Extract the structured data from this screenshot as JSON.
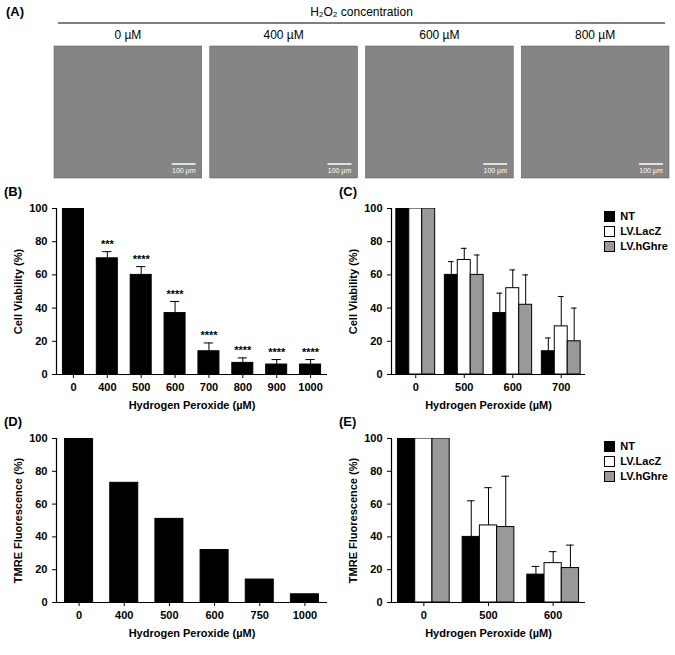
{
  "figure": {
    "panel": "(A)",
    "title": "H₂O₂ concentration",
    "images": [
      {
        "label": "0 µM",
        "scale_bar": "100 µm"
      },
      {
        "label": "400 µM",
        "scale_bar": "100 µm"
      },
      {
        "label": "600 µM",
        "scale_bar": "100 µm"
      },
      {
        "label": "800 µM",
        "scale_bar": "100 µm"
      }
    ]
  },
  "chart_data": [
    {
      "panel": "(B)",
      "type": "bar",
      "x_label": "Hydrogen Peroxide (µM)",
      "y_label": "Cell Viability (%)",
      "categories": [
        "0",
        "400",
        "500",
        "600",
        "700",
        "800",
        "900",
        "1000"
      ],
      "values": [
        100,
        70,
        60,
        37,
        14,
        7,
        6,
        6
      ],
      "errors": [
        0,
        4,
        5,
        7,
        5,
        3,
        3,
        3
      ],
      "significance": [
        null,
        "***",
        "****",
        "****",
        "****",
        "****",
        "****",
        "****"
      ],
      "color": "#000000",
      "ylim": [
        0,
        100
      ],
      "yticks": [
        0,
        20,
        40,
        60,
        80,
        100
      ]
    },
    {
      "panel": "(C)",
      "type": "bar",
      "x_label": "Hydrogen Peroxide (µM)",
      "y_label": "Cell Viability (%)",
      "categories": [
        "0",
        "500",
        "600",
        "700"
      ],
      "series": [
        {
          "name": "NT",
          "color": "#000000",
          "values": [
            100,
            60,
            37,
            14
          ],
          "errors": [
            0,
            8,
            12,
            8
          ]
        },
        {
          "name": "LV.LacZ",
          "color": "#ffffff",
          "values": [
            100,
            69,
            52,
            29
          ],
          "errors": [
            0,
            7,
            11,
            18
          ]
        },
        {
          "name": "LV.hGhre",
          "color": "#999999",
          "values": [
            100,
            60,
            42,
            20
          ],
          "errors": [
            0,
            12,
            18,
            20
          ]
        }
      ],
      "legend": "right",
      "ylim": [
        0,
        100
      ],
      "yticks": [
        0,
        20,
        40,
        60,
        80,
        100
      ]
    },
    {
      "panel": "(D)",
      "type": "bar",
      "x_label": "Hydrogen Peroxide (µM)",
      "y_label": "TMRE Fluorescence (%)",
      "categories": [
        "0",
        "400",
        "500",
        "600",
        "750",
        "1000"
      ],
      "values": [
        100,
        73,
        51,
        32,
        14,
        5
      ],
      "color": "#000000",
      "ylim": [
        0,
        100
      ],
      "yticks": [
        0,
        20,
        40,
        60,
        80,
        100
      ]
    },
    {
      "panel": "(E)",
      "type": "bar",
      "x_label": "Hydrogen Peroxide (µM)",
      "y_label": "TMRE Fluorescence (%)",
      "categories": [
        "0",
        "500",
        "600"
      ],
      "series": [
        {
          "name": "NT",
          "color": "#000000",
          "values": [
            100,
            40,
            17
          ],
          "errors": [
            0,
            22,
            5
          ]
        },
        {
          "name": "LV.LacZ",
          "color": "#ffffff",
          "values": [
            100,
            47,
            24
          ],
          "errors": [
            0,
            23,
            7
          ]
        },
        {
          "name": "LV.hGhre",
          "color": "#999999",
          "values": [
            100,
            46,
            21
          ],
          "errors": [
            0,
            31,
            14
          ]
        }
      ],
      "legend": "right",
      "ylim": [
        0,
        100
      ],
      "yticks": [
        0,
        20,
        40,
        60,
        80,
        100
      ]
    }
  ]
}
